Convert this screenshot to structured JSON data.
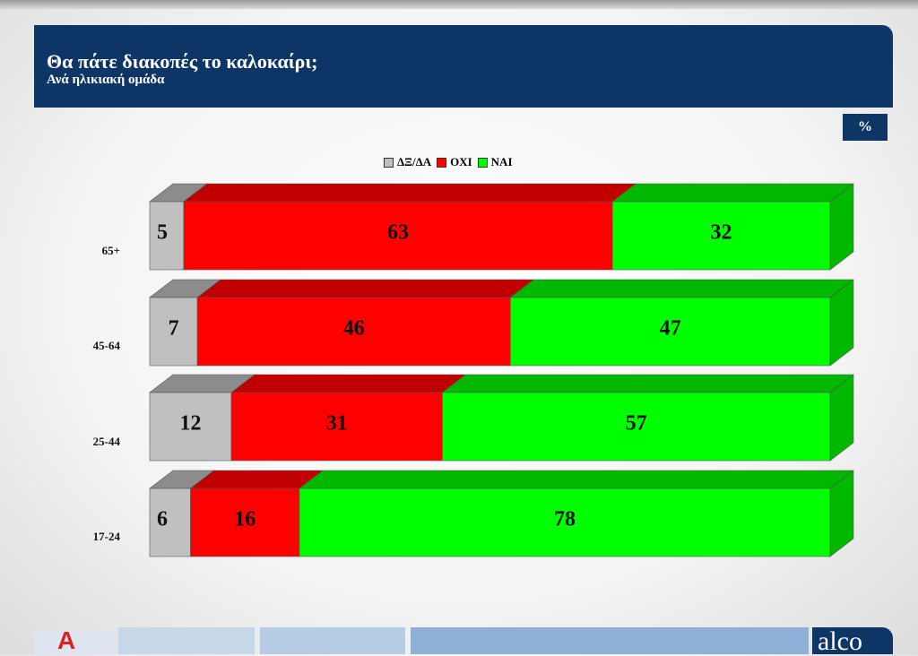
{
  "header": {
    "title": "Θα πάτε διακοπές το καλοκαίρι;",
    "subtitle": "Ανά ηλικιακή ομάδα",
    "unit": "%"
  },
  "legend": [
    {
      "label": "ΔΞ/ΔΑ",
      "color": "#c0c0c0"
    },
    {
      "label": "ΟΧΙ",
      "color": "#ff0000"
    },
    {
      "label": "ΝΑΙ",
      "color": "#00ff00"
    }
  ],
  "chart_data": {
    "type": "bar",
    "orientation": "horizontal",
    "stacked": true,
    "categories": [
      "65+",
      "45-64",
      "25-44",
      "17-24"
    ],
    "series": [
      {
        "name": "ΔΞ/ΔΑ",
        "color": "#c0c0c0",
        "side_color": "#8c8c8c",
        "values": [
          5,
          7,
          12,
          6
        ]
      },
      {
        "name": "ΟΧΙ",
        "color": "#ff0000",
        "side_color": "#c00000",
        "values": [
          63,
          46,
          31,
          16
        ]
      },
      {
        "name": "ΝΑΙ",
        "color": "#00ff00",
        "side_color": "#00b800",
        "values": [
          32,
          47,
          57,
          78
        ]
      }
    ],
    "title": "Θα πάτε διακοπές το καλοκαίρι;",
    "subtitle": "Ανά ηλικιακή ομάδα",
    "unit": "%",
    "xlim": [
      0,
      100
    ],
    "grid": false,
    "legend_position": "top-center",
    "data_labels": true
  },
  "footer": {
    "logo_left": "Α",
    "logo_right": "alco"
  }
}
